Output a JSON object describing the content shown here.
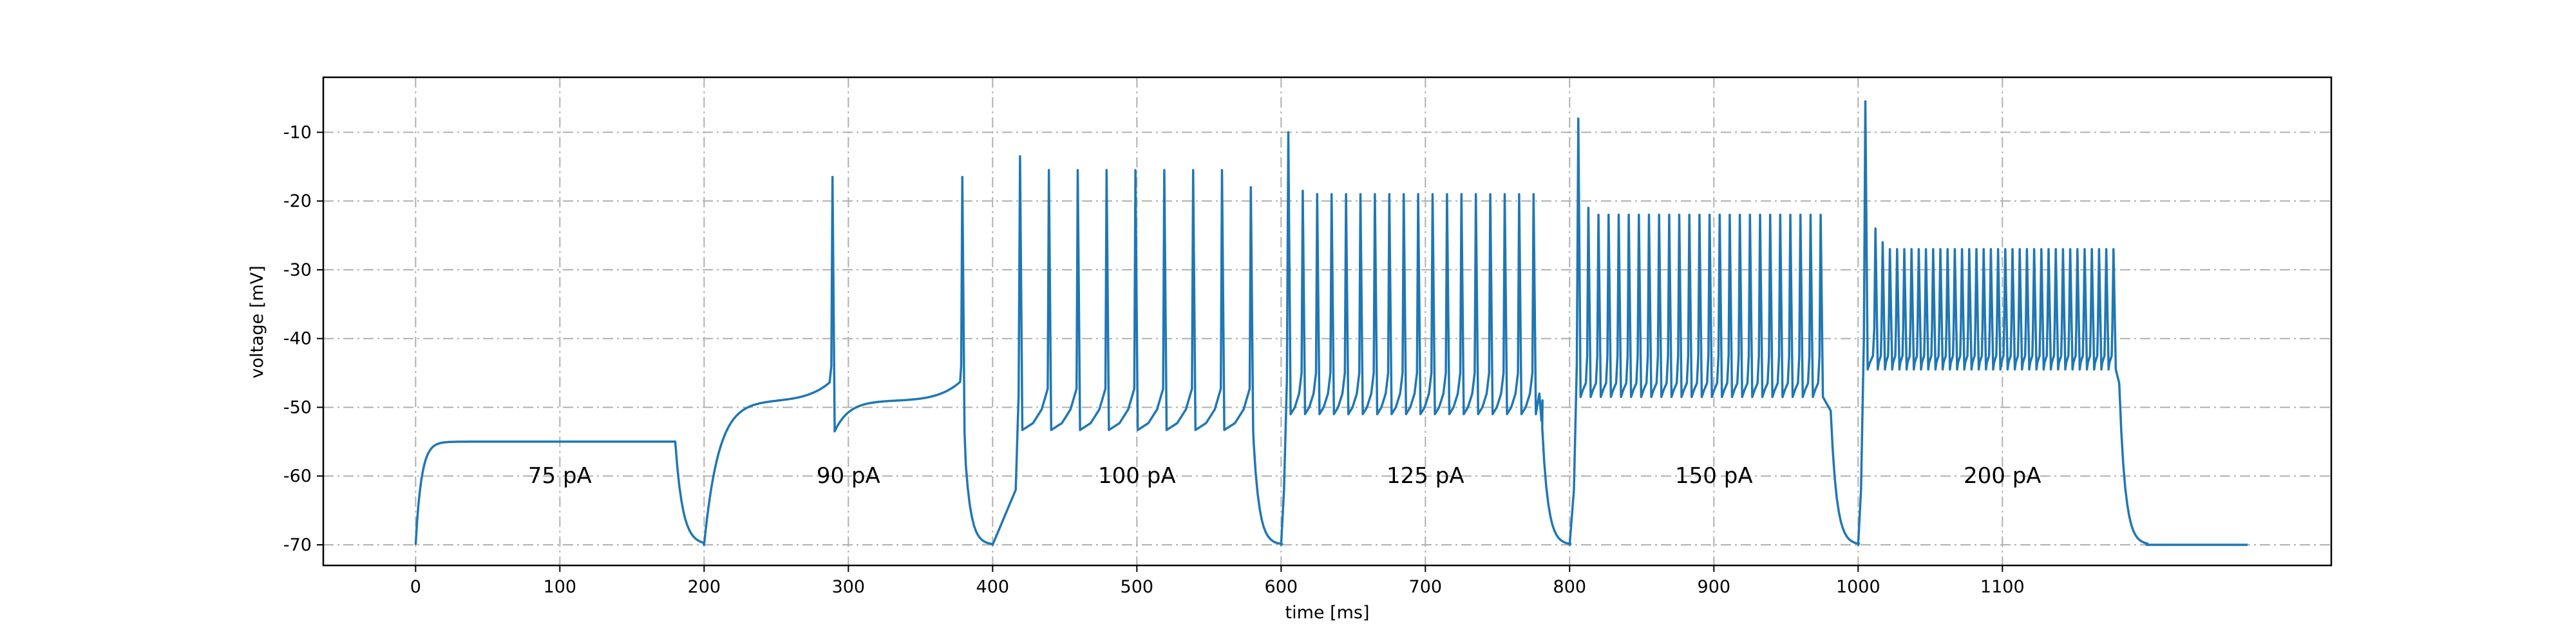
{
  "chart_data": {
    "type": "line",
    "xlabel": "time [ms]",
    "ylabel": "voltage [mV]",
    "xlim": [
      -64,
      1328
    ],
    "ylim": [
      -73,
      -2
    ],
    "x_ticks": [
      0,
      100,
      200,
      300,
      400,
      500,
      600,
      700,
      800,
      900,
      1000,
      1100
    ],
    "y_ticks": [
      -70,
      -60,
      -50,
      -40,
      -30,
      -20,
      -10
    ],
    "grid": true,
    "line_color": "#1f77b4",
    "annotations": [
      {
        "x": 100,
        "y": -61,
        "text": "75 pA"
      },
      {
        "x": 300,
        "y": -61,
        "text": "90 pA"
      },
      {
        "x": 500,
        "y": -61,
        "text": "100 pA"
      },
      {
        "x": 700,
        "y": -61,
        "text": "125 pA"
      },
      {
        "x": 900,
        "y": -61,
        "text": "150 pA"
      },
      {
        "x": 1100,
        "y": -61,
        "text": "200 pA"
      }
    ],
    "end_time": 1270,
    "segments": [
      {
        "label": "75 pA",
        "start": 0,
        "end": 180,
        "rest": -70,
        "steady": -55,
        "spikes": []
      },
      {
        "label": "90 pA",
        "start": 200,
        "end": 380,
        "rest": -70,
        "plateau": -49,
        "spikes": [
          [
            289,
            -16.5
          ],
          [
            379,
            -16.5
          ]
        ],
        "trough": -53.5
      },
      {
        "label": "100 pA",
        "start": 400,
        "end": 580,
        "rest": -70,
        "trough": -53.3,
        "spikes": [
          [
            419,
            -13.5
          ],
          [
            439,
            -15.5
          ],
          [
            459,
            -15.5
          ],
          [
            479,
            -15.5
          ],
          [
            499,
            -15.5
          ],
          [
            519,
            -15.5
          ],
          [
            539,
            -15.5
          ],
          [
            559,
            -15.5
          ],
          [
            579,
            -18
          ]
        ]
      },
      {
        "label": "125 pA",
        "start": 600,
        "end": 780,
        "rest": -70,
        "trough": -51,
        "spikes": [
          [
            605,
            -10
          ],
          [
            615,
            -18.5
          ],
          [
            625,
            -19
          ],
          [
            635,
            -19
          ],
          [
            645,
            -19
          ],
          [
            655,
            -19
          ],
          [
            665,
            -19
          ],
          [
            675,
            -19
          ],
          [
            685,
            -19
          ],
          [
            695,
            -19
          ],
          [
            705,
            -19
          ],
          [
            715,
            -19
          ],
          [
            725,
            -19
          ],
          [
            735,
            -19
          ],
          [
            745,
            -19
          ],
          [
            755,
            -19
          ],
          [
            765,
            -19
          ],
          [
            775,
            -19
          ]
        ]
      },
      {
        "label": "150 pA",
        "start": 800,
        "end": 980,
        "rest": -70,
        "trough": -48.5,
        "spikes": [
          [
            806,
            -8
          ],
          [
            813,
            -21
          ],
          [
            820,
            -22
          ],
          [
            827,
            -22
          ],
          [
            834,
            -22
          ],
          [
            841,
            -22
          ],
          [
            848,
            -22
          ],
          [
            855,
            -22
          ],
          [
            862,
            -22
          ],
          [
            869,
            -22
          ],
          [
            876,
            -22
          ],
          [
            883,
            -22
          ],
          [
            890,
            -22
          ],
          [
            897,
            -22
          ],
          [
            904,
            -22
          ],
          [
            911,
            -22
          ],
          [
            918,
            -22
          ],
          [
            925,
            -22
          ],
          [
            932,
            -22
          ],
          [
            939,
            -22
          ],
          [
            946,
            -22
          ],
          [
            953,
            -22
          ],
          [
            960,
            -22
          ],
          [
            967,
            -22
          ],
          [
            974,
            -22
          ]
        ]
      },
      {
        "label": "200 pA",
        "start": 1000,
        "end": 1180,
        "rest": -70,
        "trough": -44.5,
        "spikes": [
          [
            1005,
            -5.5
          ],
          [
            1012,
            -24
          ],
          [
            1017,
            -26
          ],
          [
            1022,
            -27
          ],
          [
            1027,
            -27
          ],
          [
            1032,
            -27
          ],
          [
            1037,
            -27
          ],
          [
            1042,
            -27
          ],
          [
            1047,
            -27
          ],
          [
            1052,
            -27
          ],
          [
            1057,
            -27
          ],
          [
            1062,
            -27
          ],
          [
            1067,
            -27
          ],
          [
            1072,
            -27
          ],
          [
            1077,
            -27
          ],
          [
            1082,
            -27
          ],
          [
            1087,
            -27
          ],
          [
            1092,
            -27
          ],
          [
            1097,
            -27
          ],
          [
            1102,
            -27
          ],
          [
            1107,
            -27
          ],
          [
            1112,
            -27
          ],
          [
            1117,
            -27
          ],
          [
            1122,
            -27
          ],
          [
            1127,
            -27
          ],
          [
            1132,
            -27
          ],
          [
            1137,
            -27
          ],
          [
            1142,
            -27
          ],
          [
            1147,
            -27
          ],
          [
            1152,
            -27
          ],
          [
            1157,
            -27
          ],
          [
            1162,
            -27
          ],
          [
            1167,
            -27
          ],
          [
            1172,
            -27
          ],
          [
            1177,
            -27
          ]
        ]
      }
    ]
  }
}
